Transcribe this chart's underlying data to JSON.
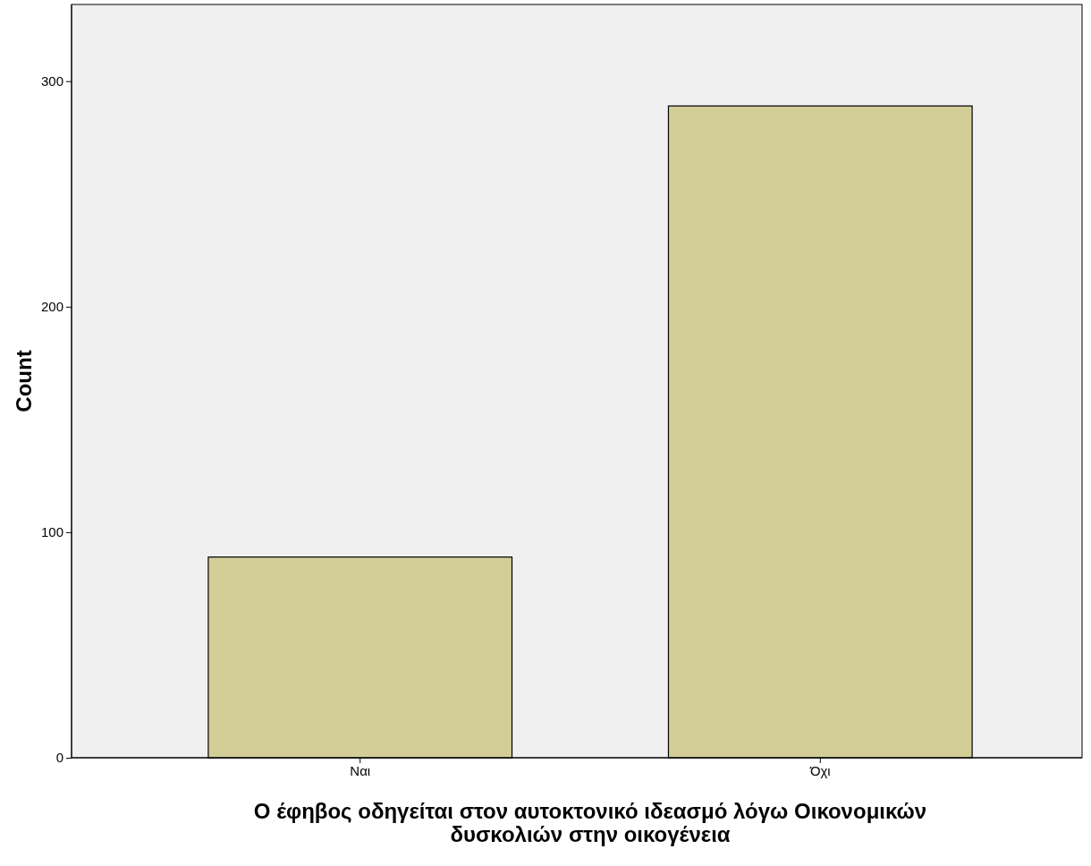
{
  "chart_data": {
    "type": "bar",
    "categories": [
      "Ναι",
      "Όχι"
    ],
    "values": [
      89,
      289
    ],
    "color": "#d3ce98",
    "ylim": [
      0,
      334
    ],
    "yticks": [
      0,
      100,
      200,
      300
    ],
    "ylabel": "Count",
    "xlabel": "Ο έφηβος οδηγείται στον αυτοκτονικό ιδεασμό λόγω Οικονομικών δυσκολιών στην οικογένεια",
    "grid": false
  }
}
